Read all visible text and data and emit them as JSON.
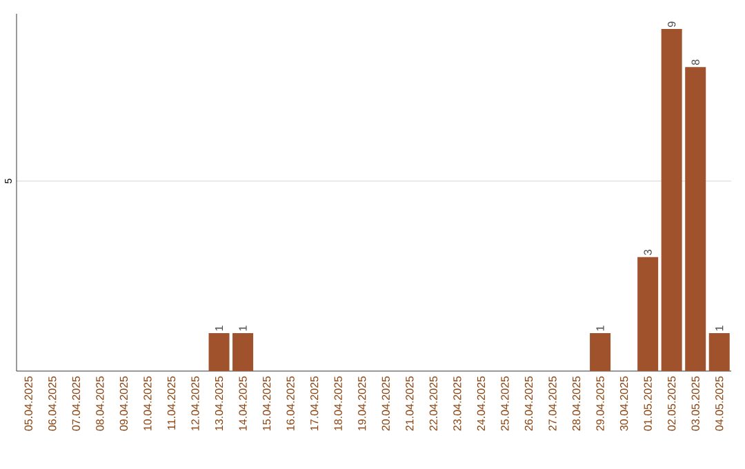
{
  "chart_data": {
    "type": "bar",
    "categories": [
      "05.04.2025",
      "06.04.2025",
      "07.04.2025",
      "08.04.2025",
      "09.04.2025",
      "10.04.2025",
      "11.04.2025",
      "12.04.2025",
      "13.04.2025",
      "14.04.2025",
      "15.04.2025",
      "16.04.2025",
      "17.04.2025",
      "18.04.2025",
      "19.04.2025",
      "20.04.2025",
      "21.04.2025",
      "22.04.2025",
      "23.04.2025",
      "24.04.2025",
      "25.04.2025",
      "26.04.2025",
      "27.04.2025",
      "28.04.2025",
      "29.04.2025",
      "30.04.2025",
      "01.05.2025",
      "02.05.2025",
      "03.05.2025",
      "04.05.2025"
    ],
    "values": [
      0,
      0,
      0,
      0,
      0,
      0,
      0,
      0,
      1,
      1,
      0,
      0,
      0,
      0,
      0,
      0,
      0,
      0,
      0,
      0,
      0,
      0,
      0,
      0,
      1,
      0,
      3,
      9,
      8,
      1
    ],
    "value_labels": [
      null,
      null,
      null,
      null,
      null,
      null,
      null,
      null,
      "1",
      "1",
      null,
      null,
      null,
      null,
      null,
      null,
      null,
      null,
      null,
      null,
      null,
      null,
      null,
      null,
      "1",
      null,
      "3",
      "9",
      "8",
      "1"
    ],
    "color": "#a0522d",
    "ylim": [
      0,
      9.4
    ],
    "yticks": [
      5
    ],
    "grid": "y"
  }
}
